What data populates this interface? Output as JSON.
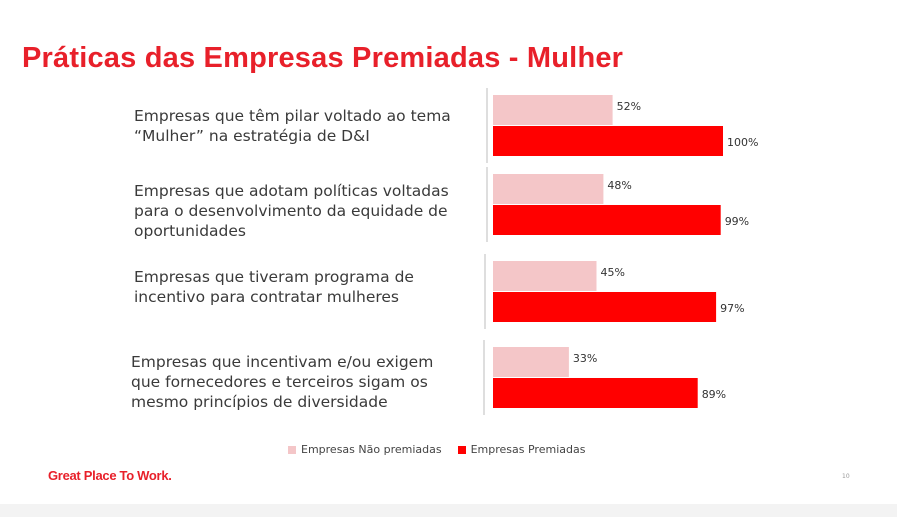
{
  "title": "Práticas das Empresas Premiadas - Mulher",
  "chart_data": {
    "type": "bar",
    "orientation": "horizontal",
    "categories": [
      "Empresas que têm pilar voltado ao tema “Mulher” na estratégia de D&I",
      "Empresas que adotam políticas voltadas para o desenvolvimento da equidade de oportunidades",
      "Empresas que tiveram programa de incentivo para contratar mulheres",
      "Empresas que incentivam e/ou exigem que fornecedores e terceiros sigam os mesmo princípios de diversidade"
    ],
    "series": [
      {
        "name": "Empresas Não premiadas",
        "values": [
          52,
          48,
          45,
          33
        ],
        "labels": [
          "52%",
          "48%",
          "45%",
          "33%"
        ],
        "color": "#f4c6c8"
      },
      {
        "name": "Empresas Premiadas",
        "values": [
          100,
          99,
          97,
          89
        ],
        "labels": [
          "100%",
          "99%",
          "97%",
          "89%"
        ],
        "color": "#ff0000"
      }
    ],
    "xlim": [
      0,
      100
    ],
    "legend": "bottom"
  },
  "brand": "Great Place To Work.",
  "page_number": "10"
}
